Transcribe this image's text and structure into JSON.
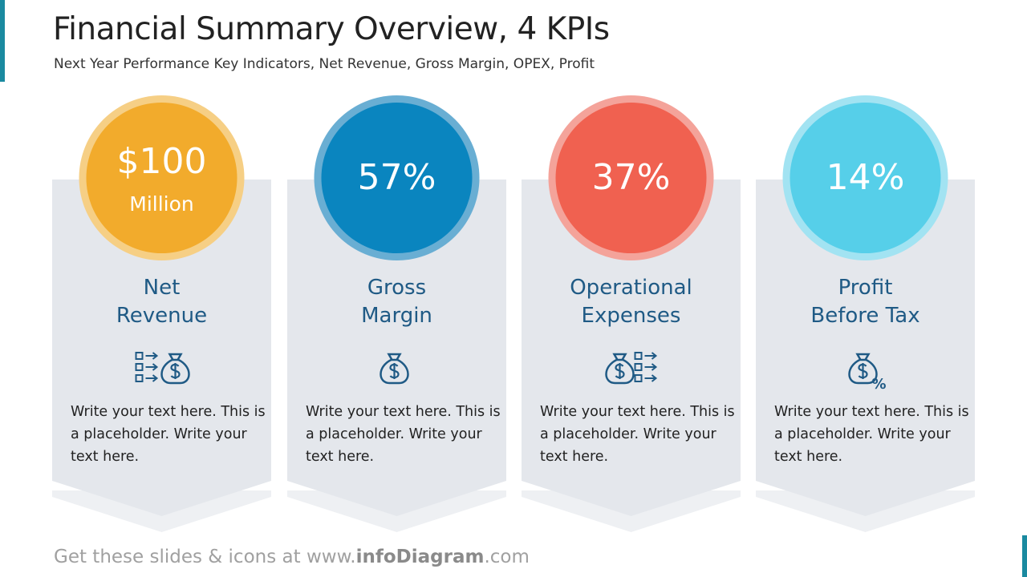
{
  "header": {
    "title": "Financial Summary Overview, 4 KPIs",
    "subtitle": "Next Year Performance Key Indicators, Net Revenue, Gross Margin, OPEX, Profit"
  },
  "cards": [
    {
      "value": "$100",
      "unit": "Million",
      "label": [
        "Net",
        "Revenue"
      ],
      "text": "Write your text here. This is a placeholder. Write your text here.",
      "color": "#f2ab2c",
      "ring": "#f6cf85"
    },
    {
      "value": "57%",
      "label": [
        "Gross",
        "Margin"
      ],
      "text": "Write your text here. This is a placeholder. Write your text here.",
      "color": "#0a85bf",
      "ring": "#69aed3"
    },
    {
      "value": "37%",
      "label": [
        "Operational",
        "Expenses"
      ],
      "text": "Write your text here. This is a placeholder. Write your text here.",
      "color": "#f06150",
      "ring": "#f4a39a"
    },
    {
      "value": "14%",
      "label": [
        "Profit",
        "Before Tax"
      ],
      "text": "Write your text here. This is a placeholder. Write your text here.",
      "color": "#56cfe9",
      "ring": "#a2e3f2"
    }
  ],
  "footer": [
    "Get these slides & icons at www.",
    "infoDiagram",
    ".com"
  ]
}
